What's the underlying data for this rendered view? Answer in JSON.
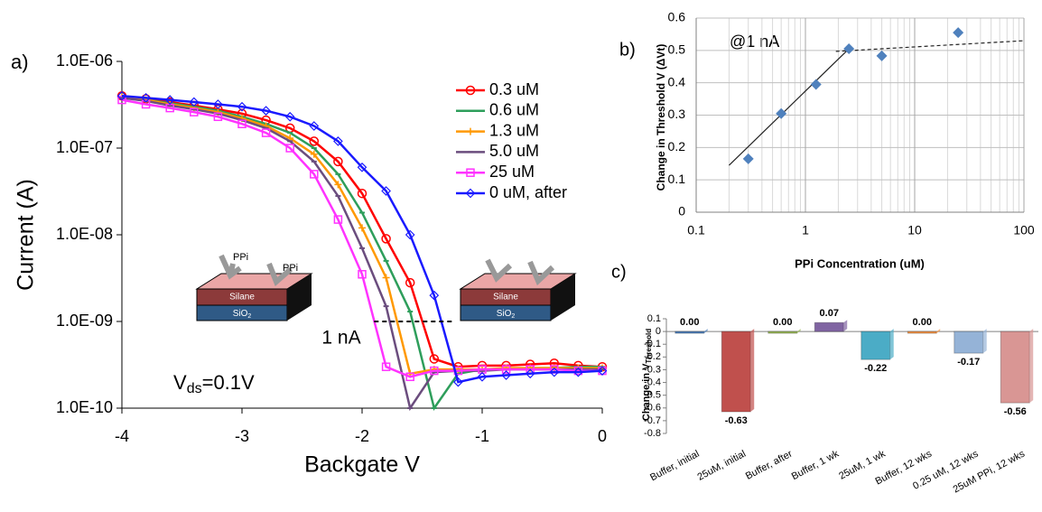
{
  "chart_data": [
    {
      "type": "line",
      "panel": "a)",
      "x_label": "Backgate V",
      "y_label": "Current (A)",
      "yscale": "log",
      "xlim": [
        -4,
        0
      ],
      "ylim": [
        1e-10,
        1e-06
      ],
      "xticks": [
        -4,
        -3,
        -2,
        -1,
        0
      ],
      "yticks": [
        {
          "value": 1e-10,
          "label": "1.0E-10"
        },
        {
          "value": 1e-09,
          "label": "1.0E-09"
        },
        {
          "value": 1e-08,
          "label": "1.0E-08"
        },
        {
          "value": 1e-07,
          "label": "1.0E-07"
        },
        {
          "value": 1e-06,
          "label": "1.0E-06"
        }
      ],
      "x": [
        -4,
        -3.8,
        -3.6,
        -3.4,
        -3.2,
        -3,
        -2.8,
        -2.6,
        -2.4,
        -2.2,
        -2,
        -1.8,
        -1.6,
        -1.4,
        -1.2,
        -1,
        -0.8,
        -0.6,
        -0.4,
        -0.2,
        0
      ],
      "series": [
        {
          "name": "0.3 uM",
          "color": "#ff0000",
          "marker": "circle",
          "values": [
            4e-07,
            3.7e-07,
            3.4e-07,
            3.1e-07,
            2.8e-07,
            2.5e-07,
            2.1e-07,
            1.7e-07,
            1.2e-07,
            7e-08,
            3e-08,
            9e-09,
            2.8e-09,
            3.7e-10,
            3e-10,
            3.1e-10,
            3.1e-10,
            3.2e-10,
            3.3e-10,
            3.1e-10,
            3e-10
          ]
        },
        {
          "name": "0.6 uM",
          "color": "#2e9e5b",
          "marker": "dash",
          "values": [
            3.9e-07,
            3.6e-07,
            3.3e-07,
            3e-07,
            2.7e-07,
            2.3e-07,
            1.9e-07,
            1.5e-07,
            1e-07,
            5e-08,
            1.8e-08,
            5e-09,
            1.3e-09,
            1e-10,
            2.5e-10,
            2.8e-10,
            2.8e-10,
            2.9e-10,
            2.9e-10,
            3e-10,
            3e-10
          ]
        },
        {
          "name": "1.3 uM",
          "color": "#ff9900",
          "marker": "plus",
          "values": [
            3.9e-07,
            3.6e-07,
            3.2e-07,
            2.9e-07,
            2.6e-07,
            2.2e-07,
            1.8e-07,
            1.3e-07,
            8.5e-08,
            3.8e-08,
            1.2e-08,
            3.2e-09,
            2.5e-10,
            2.8e-10,
            2.8e-10,
            2.8e-10,
            2.9e-10,
            2.9e-10,
            2.9e-10,
            2.9e-10,
            2.9e-10
          ]
        },
        {
          "name": "5.0 uM",
          "color": "#6b4d7e",
          "marker": "dash",
          "values": [
            3.8e-07,
            3.5e-07,
            3.1e-07,
            2.8e-07,
            2.5e-07,
            2.1e-07,
            1.7e-07,
            1.2e-07,
            7e-08,
            2.8e-08,
            7e-09,
            1.5e-09,
            1e-10,
            2.6e-10,
            2.7e-10,
            2.7e-10,
            2.8e-10,
            2.8e-10,
            2.8e-10,
            2.8e-10,
            2.8e-10
          ]
        },
        {
          "name": "25 uM",
          "color": "#ff33ff",
          "marker": "square",
          "values": [
            3.6e-07,
            3.2e-07,
            2.9e-07,
            2.6e-07,
            2.3e-07,
            1.9e-07,
            1.5e-07,
            1e-07,
            5e-08,
            1.5e-08,
            3.5e-09,
            3e-10,
            2.3e-10,
            2.7e-10,
            2.7e-10,
            2.8e-10,
            2.8e-10,
            2.8e-10,
            2.8e-10,
            2.7e-10,
            2.7e-10
          ]
        },
        {
          "name": "0 uM, after",
          "color": "#1a1aff",
          "marker": "diamond",
          "values": [
            4e-07,
            3.8e-07,
            3.6e-07,
            3.4e-07,
            3.2e-07,
            3e-07,
            2.7e-07,
            2.3e-07,
            1.8e-07,
            1.2e-07,
            6e-08,
            3.2e-08,
            1e-08,
            2e-09,
            2e-10,
            2.3e-10,
            2.4e-10,
            2.5e-10,
            2.6e-10,
            2.6e-10,
            2.7e-10
          ]
        }
      ],
      "threshold": {
        "label": "1 nA",
        "value": 1e-09,
        "x": [
          -1.9,
          -1.25
        ]
      },
      "vds_label": [
        "V",
        "ds",
        "=0.1V"
      ],
      "insets": [
        {
          "probes": [
            "PPi",
            "PPi"
          ],
          "layers": [
            "Silane",
            "SiO"
          ],
          "sub": "2"
        },
        {
          "layers": [
            "Silane",
            "SiO"
          ],
          "sub": "2"
        }
      ]
    },
    {
      "type": "scatter",
      "panel": "b)",
      "x_label": "PPi Concentration (uM)",
      "y_label": "Change in Threshold V (ΔVt)",
      "annotation": "@1 nA",
      "xscale": "log",
      "xlim": [
        0.1,
        100
      ],
      "ylim": [
        0,
        0.6
      ],
      "xticks": [
        0.1,
        1,
        10,
        100
      ],
      "yticks": [
        0,
        0.1,
        0.2,
        0.3,
        0.4,
        0.5,
        0.6
      ],
      "grid": true,
      "minor_grid": true,
      "color": "#4f81bd",
      "x": [
        0.3,
        0.6,
        1.25,
        2.5,
        5,
        25
      ],
      "values": [
        0.165,
        0.305,
        0.395,
        0.505,
        0.483,
        0.555
      ],
      "trendlines": [
        {
          "x": [
            0.2,
            2.5
          ],
          "values": [
            0.145,
            0.505
          ],
          "dashed": false
        },
        {
          "x": [
            1.9,
            100
          ],
          "values": [
            0.497,
            0.53
          ],
          "dashed": true
        }
      ]
    },
    {
      "type": "bar",
      "panel": "c)",
      "y_label": "Change in V",
      "y_label_sub": "Threshold",
      "ylim": [
        -0.8,
        0.1
      ],
      "yticks": [
        -0.8,
        -0.7,
        -0.6,
        -0.5,
        -0.4,
        -0.3,
        -0.2,
        -0.1,
        0,
        0.1
      ],
      "categories": [
        "Buffer, initial",
        "25uM, initial",
        "Buffer, after",
        "Buffer, 1 wk",
        "25uM, 1 wk",
        "Buffer, 12 wks",
        "0.25 uM, 12 wks",
        "25uM PPi, 12 wks"
      ],
      "values": [
        0,
        -0.63,
        0,
        0.07,
        -0.22,
        0,
        -0.17,
        -0.56
      ],
      "value_labels": [
        "0.00",
        "-0.63",
        "0.00",
        "0.07",
        "-0.22",
        "0.00",
        "-0.17",
        "-0.56"
      ],
      "colors": [
        "#4f81bd",
        "#c0504d",
        "#9bbb59",
        "#8064a2",
        "#4bacc6",
        "#f79646",
        "#95b3d7",
        "#d99694"
      ]
    }
  ]
}
